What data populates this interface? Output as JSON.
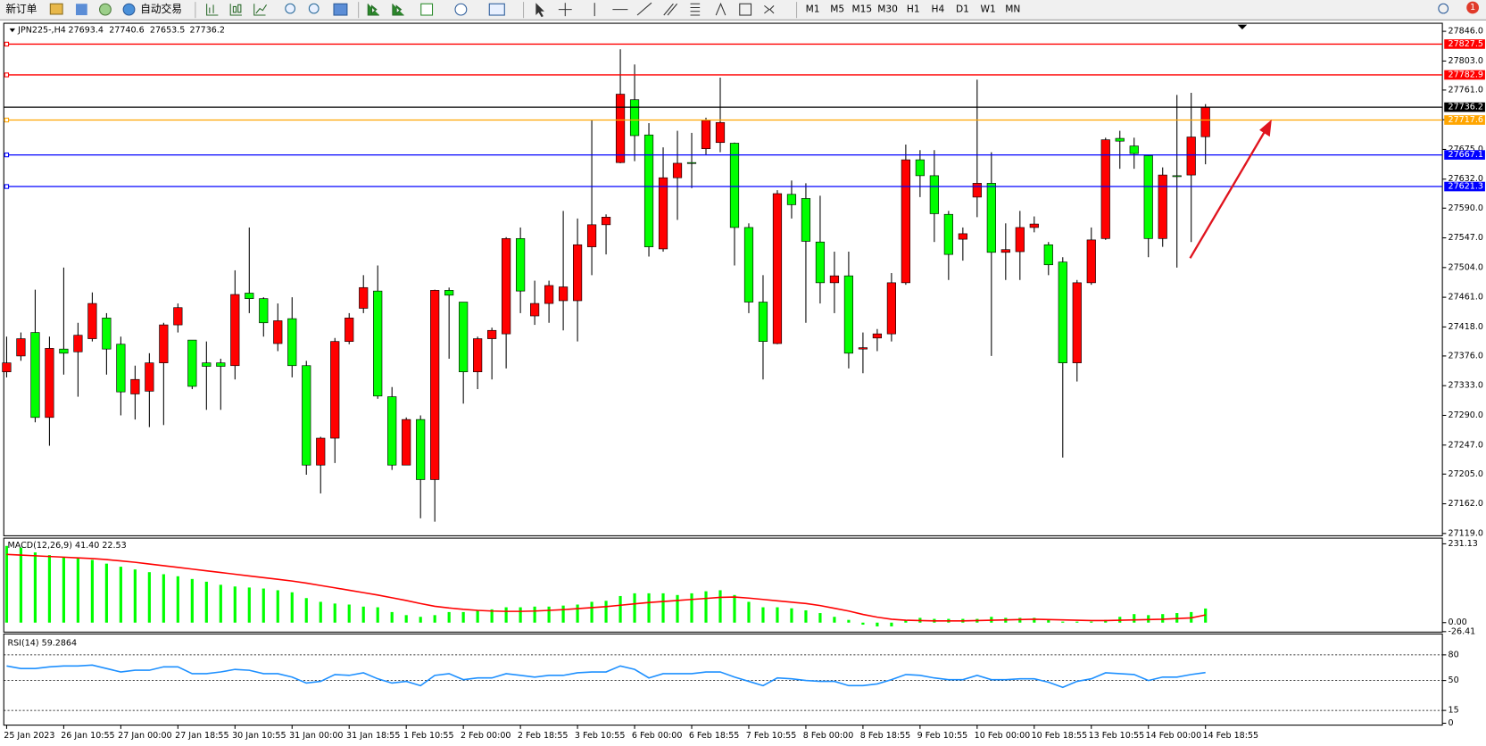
{
  "toolbar": {
    "new_order": "新订单",
    "auto_trading": "自动交易",
    "timeframes": [
      "M1",
      "M5",
      "M15",
      "M30",
      "H1",
      "H4",
      "D1",
      "W1",
      "MN"
    ],
    "notifications": "1"
  },
  "chart_data": [
    {
      "type": "candlestick",
      "symbol": "JPN225-,H4",
      "categories": [
        "25 Jan 2023",
        null,
        null,
        null,
        "26 Jan 10:55",
        null,
        null,
        null,
        "27 Jan 00:00",
        null,
        null,
        null,
        "27 Jan 18:55",
        null,
        null,
        null,
        "30 Jan 10:55",
        null,
        null,
        null,
        "31 Jan 00:00",
        null,
        null,
        null,
        "31 Jan 18:55",
        null,
        null,
        null,
        "1 Feb 10:55",
        null,
        null,
        null,
        "2 Feb 00:00",
        null,
        null,
        null,
        "2 Feb 18:55",
        null,
        null,
        null,
        "3 Feb 10:55",
        null,
        null,
        null,
        "6 Feb 00:00",
        null,
        null,
        null,
        "6 Feb 18:55",
        null,
        null,
        null,
        "7 Feb 10:55",
        null,
        null,
        null,
        "8 Feb 00:00",
        null,
        null,
        null,
        "8 Feb 18:55",
        null,
        null,
        null,
        "9 Feb 10:55",
        null,
        null,
        null,
        "10 Feb 00:00",
        null,
        null,
        null,
        "10 Feb 18:55",
        null,
        null,
        null,
        "13 Feb 10:55",
        null,
        null,
        null,
        "14 Feb 00:00",
        null,
        null,
        null,
        "14 Feb 18:55"
      ],
      "candles": [
        [
          27353,
          27404,
          27345,
          27366
        ],
        [
          27376,
          27410,
          27369,
          27401
        ],
        [
          27410,
          27472,
          27280,
          27287
        ],
        [
          27287,
          27404,
          27246,
          27387
        ],
        [
          27386,
          27504,
          27349,
          27380
        ],
        [
          27382,
          27424,
          27317,
          27406
        ],
        [
          27401,
          27468,
          27397,
          27452
        ],
        [
          27431,
          27438,
          27349,
          27386
        ],
        [
          27393,
          27404,
          27290,
          27324
        ],
        [
          27321,
          27362,
          27284,
          27342
        ],
        [
          27325,
          27380,
          27273,
          27366
        ],
        [
          27366,
          27424,
          27276,
          27421
        ],
        [
          27421,
          27452,
          27410,
          27446
        ],
        [
          27399,
          27399,
          27328,
          27332
        ],
        [
          27366,
          27397,
          27298,
          27361
        ],
        [
          27366,
          27372,
          27298,
          27361
        ],
        [
          27362,
          27500,
          27342,
          27465
        ],
        [
          27467,
          27562,
          27438,
          27459
        ],
        [
          27459,
          27461,
          27404,
          27424
        ],
        [
          27394,
          27452,
          27383,
          27427
        ],
        [
          27430,
          27461,
          27345,
          27362
        ],
        [
          27362,
          27369,
          27204,
          27218
        ],
        [
          27218,
          27259,
          27177,
          27257
        ],
        [
          27257,
          27402,
          27221,
          27397
        ],
        [
          27397,
          27438,
          27393,
          27431
        ],
        [
          27445,
          27493,
          27438,
          27475
        ],
        [
          27470,
          27507,
          27314,
          27318
        ],
        [
          27317,
          27331,
          27211,
          27218
        ],
        [
          27218,
          27287,
          27218,
          27284
        ],
        [
          27284,
          27290,
          27141,
          27197
        ],
        [
          27197,
          27472,
          27136,
          27471
        ],
        [
          27471,
          27475,
          27372,
          27464
        ],
        [
          27454,
          27454,
          27307,
          27353
        ],
        [
          27353,
          27404,
          27328,
          27401
        ],
        [
          27401,
          27417,
          27342,
          27413
        ],
        [
          27408,
          27548,
          27358,
          27546
        ],
        [
          27546,
          27562,
          27438,
          27470
        ],
        [
          27434,
          27485,
          27421,
          27452
        ],
        [
          27452,
          27485,
          27424,
          27478
        ],
        [
          27456,
          27586,
          27413,
          27476
        ],
        [
          27456,
          27575,
          27397,
          27537
        ],
        [
          27534,
          27717,
          27493,
          27566
        ],
        [
          27566,
          27581,
          27523,
          27577
        ],
        [
          27656,
          27820,
          27655,
          27755
        ],
        [
          27747,
          27798,
          27658,
          27695
        ],
        [
          27696,
          27713,
          27520,
          27534
        ],
        [
          27531,
          27678,
          27527,
          27634
        ],
        [
          27634,
          27702,
          27573,
          27655
        ],
        [
          27656,
          27699,
          27619,
          27655
        ],
        [
          27676,
          27721,
          27667,
          27717
        ],
        [
          27685,
          27779,
          27671,
          27714
        ],
        [
          27684,
          27685,
          27507,
          27562
        ],
        [
          27562,
          27568,
          27438,
          27454
        ],
        [
          27454,
          27493,
          27342,
          27397
        ],
        [
          27394,
          27616,
          27393,
          27611
        ],
        [
          27610,
          27630,
          27575,
          27595
        ],
        [
          27604,
          27626,
          27424,
          27542
        ],
        [
          27541,
          27608,
          27452,
          27482
        ],
        [
          27482,
          27527,
          27438,
          27492
        ],
        [
          27492,
          27527,
          27358,
          27380
        ],
        [
          27386,
          27410,
          27351,
          27388
        ],
        [
          27402,
          27415,
          27383,
          27408
        ],
        [
          27408,
          27496,
          27397,
          27482
        ],
        [
          27482,
          27682,
          27479,
          27660
        ],
        [
          27660,
          27674,
          27606,
          27637
        ],
        [
          27637,
          27674,
          27541,
          27582
        ],
        [
          27581,
          27586,
          27486,
          27523
        ],
        [
          27545,
          27562,
          27514,
          27553
        ],
        [
          27606,
          27776,
          27577,
          27626
        ],
        [
          27626,
          27671,
          27376,
          27526
        ],
        [
          27526,
          27568,
          27486,
          27530
        ],
        [
          27527,
          27586,
          27486,
          27562
        ],
        [
          27562,
          27578,
          27555,
          27567
        ],
        [
          27537,
          27541,
          27493,
          27508
        ],
        [
          27512,
          27519,
          27229,
          27366
        ],
        [
          27366,
          27486,
          27339,
          27482
        ],
        [
          27482,
          27562,
          27479,
          27544
        ],
        [
          27546,
          27692,
          27544,
          27689
        ],
        [
          27691,
          27702,
          27647,
          27687
        ],
        [
          27680,
          27692,
          27647,
          27669
        ],
        [
          27666,
          27667,
          27519,
          27546
        ],
        [
          27546,
          27649,
          27534,
          27638
        ],
        [
          27637,
          27754,
          27504,
          27636
        ],
        [
          27638,
          27757,
          27541,
          27693
        ],
        [
          27693.4,
          27740.6,
          27653.5,
          27736.2
        ]
      ],
      "up_color": "#ff0000",
      "down_color": "#00ff00",
      "ylim": [
        27115,
        27857
      ],
      "yticks": [
        {
          "value": 27846,
          "label": "27846.0"
        },
        {
          "value": 27803,
          "label": "27803.0"
        },
        {
          "value": 27761,
          "label": "27761.0"
        },
        {
          "value": 27718,
          "label": "27718.0"
        },
        {
          "value": 27675,
          "label": "27675.0"
        },
        {
          "value": 27632,
          "label": "27632.0"
        },
        {
          "value": 27590,
          "label": "27590.0"
        },
        {
          "value": 27547,
          "label": "27547.0"
        },
        {
          "value": 27504,
          "label": "27504.0"
        },
        {
          "value": 27461,
          "label": "27461.0"
        },
        {
          "value": 27418,
          "label": "27418.0"
        },
        {
          "value": 27376,
          "label": "27376.0"
        },
        {
          "value": 27333,
          "label": "27333.0"
        },
        {
          "value": 27290,
          "label": "27290.0"
        },
        {
          "value": 27247,
          "label": "27247.0"
        },
        {
          "value": 27205,
          "label": "27205.0"
        },
        {
          "value": 27162,
          "label": "27162.0"
        },
        {
          "value": 27119,
          "label": "27119.0"
        }
      ],
      "hlines": [
        {
          "value": 27827.5,
          "color": "#ff0000"
        },
        {
          "value": 27782.9,
          "color": "#ff0000"
        },
        {
          "value": 27736.2,
          "color": "#000000"
        },
        {
          "value": 27717.6,
          "color": "#ffa500"
        },
        {
          "value": 27667.1,
          "color": "#0000ff"
        },
        {
          "value": 27621.3,
          "color": "#0000ff"
        }
      ]
    },
    {
      "type": "macd",
      "label": "MACD(12,26,9) 41.40 22.53",
      "histogram": [
        225,
        220,
        206,
        198,
        192,
        189,
        184,
        173,
        164,
        156,
        148,
        142,
        136,
        128,
        120,
        111,
        106,
        103,
        100,
        95,
        89,
        72,
        61,
        56,
        53,
        47,
        45,
        31,
        22,
        17,
        22,
        31,
        31,
        36,
        39,
        45,
        45,
        47,
        47,
        50,
        53,
        61,
        64,
        78,
        86,
        86,
        86,
        81,
        86,
        92,
        95,
        81,
        61,
        45,
        45,
        42,
        36,
        28,
        17,
        8,
        -6,
        -11,
        -11,
        6,
        14,
        11,
        11,
        11,
        11,
        17,
        14,
        14,
        14,
        8,
        3,
        3,
        3,
        8,
        17,
        25,
        22,
        25,
        28,
        31,
        41.4
      ],
      "signal": [
        200,
        198,
        196,
        194,
        192,
        190,
        188,
        185,
        181,
        177,
        172,
        167,
        162,
        157,
        152,
        147,
        142,
        137,
        132,
        127,
        122,
        116,
        109,
        102,
        95,
        88,
        81,
        73,
        65,
        56,
        48,
        43,
        39,
        36,
        34,
        33,
        33,
        34,
        36,
        38,
        41,
        44,
        47,
        51,
        55,
        59,
        62,
        65,
        68,
        71,
        74,
        75,
        72,
        68,
        64,
        60,
        56,
        50,
        42,
        34,
        24,
        16,
        10,
        7,
        6,
        5,
        5,
        5,
        6,
        7,
        8,
        9,
        10,
        9,
        8,
        7,
        6,
        6,
        7,
        8,
        9,
        10,
        12,
        14,
        22.53
      ],
      "histogram_color": "#00ff00",
      "signal_color": "#ff0000",
      "ylim": [
        -27.8,
        247.8
      ],
      "yticks": [
        231.13,
        {
          "value": 0,
          "label": "0.00"
        },
        -26.41
      ]
    },
    {
      "type": "rsi",
      "label": "RSI(14) 59.2864",
      "values": [
        67,
        64,
        64,
        66,
        67,
        67,
        68,
        64,
        60,
        62,
        62,
        66,
        66,
        58,
        58,
        60,
        63,
        62,
        58,
        58,
        54,
        47,
        49,
        57,
        56,
        59,
        52,
        47,
        49,
        44,
        56,
        58,
        51,
        53,
        53,
        58,
        56,
        54,
        56,
        56,
        59,
        60,
        60,
        67,
        63,
        53,
        58,
        58,
        58,
        60,
        60,
        54,
        49,
        44,
        53,
        52,
        50,
        49,
        49,
        44,
        44,
        46,
        51,
        57,
        56,
        53,
        51,
        51,
        56,
        51,
        51,
        52,
        52,
        48,
        42,
        49,
        52,
        59,
        58,
        57,
        50,
        54,
        54,
        57,
        59.2864
      ],
      "color": "#1e90ff",
      "ylim": [
        -2.2,
        104.4
      ],
      "yticks": [
        80,
        50,
        15,
        0
      ],
      "levels": [
        80,
        50,
        15
      ]
    }
  ]
}
